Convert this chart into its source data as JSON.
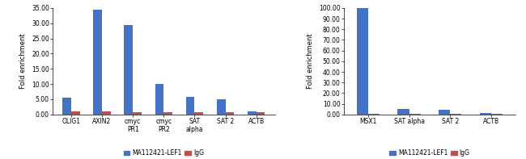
{
  "left": {
    "categories": [
      "OLIG1",
      "AXIN2",
      "cmyc\nPR1",
      "cmyc\nPR2",
      "SAT\nalpha",
      "SAT 2",
      "ACTB"
    ],
    "lef1_values": [
      5.4,
      34.5,
      29.3,
      10.0,
      5.7,
      4.9,
      1.1
    ],
    "igg_values": [
      0.9,
      0.9,
      0.8,
      0.8,
      0.8,
      0.8,
      0.8
    ],
    "ylim": [
      0,
      35
    ],
    "yticks": [
      0.0,
      5.0,
      10.0,
      15.0,
      20.0,
      25.0,
      30.0,
      35.0
    ],
    "ylabel": "Fold enrichment",
    "legend_labels": [
      "MA112421-LEF1",
      "IgG"
    ]
  },
  "right": {
    "categories": [
      "MSX1",
      "SAT alpha",
      "SAT 2",
      "ACTB"
    ],
    "lef1_values": [
      100.0,
      5.5,
      4.5,
      1.2
    ],
    "igg_values": [
      0.9,
      0.8,
      0.8,
      0.9
    ],
    "ylim": [
      0,
      100
    ],
    "yticks": [
      0.0,
      10.0,
      20.0,
      30.0,
      40.0,
      50.0,
      60.0,
      70.0,
      80.0,
      90.0,
      100.0
    ],
    "ylabel": "Fold enrichment",
    "legend_labels": [
      "MA112421-LEF1",
      "IgG"
    ]
  },
  "bar_color_lef1": "#4472C4",
  "bar_color_igg": "#C0504D",
  "bar_width": 0.28,
  "tick_fontsize": 5.5,
  "label_fontsize": 6.0,
  "legend_fontsize": 5.5,
  "bg_color": "#ffffff"
}
